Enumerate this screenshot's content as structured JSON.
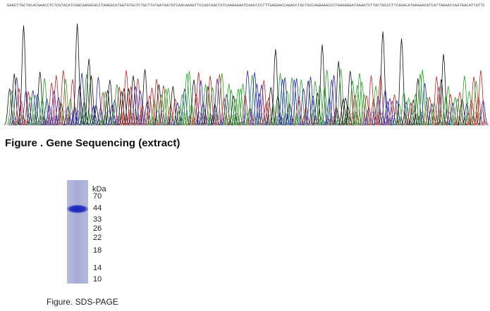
{
  "sequencing": {
    "bases": "GAGCTTGCTACACGAACCTCTCGTACATCGGCGAGGCGCCTAGGGCATGGTGTGCTCTGCTTATGATAATGTCAACAAAGTTCCAGTAGCTATCAAGAAAATCAACCCCTTTGAGGACCAGACCTACTGCCAGAGAACCCTGAGGGGATAAAATCTTACTGCCCTTCAGACATGAGAACATCATTGGAATCAATGACATTATTC",
    "caption": "Figure . Gene Sequencing (extract)"
  },
  "gel": {
    "unit": "kDa",
    "markers": [
      "70",
      "44",
      "33",
      "26",
      "22",
      "18",
      "14",
      "10"
    ],
    "caption": "Figure. SDS-PAGE"
  }
}
